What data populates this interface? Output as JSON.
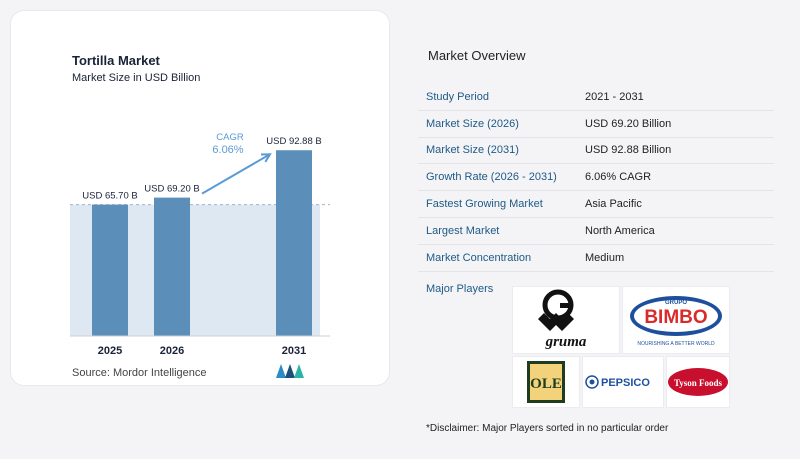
{
  "chart": {
    "title": "Tortilla Market",
    "subtitle": "Market Size in USD Billion",
    "source": "Source:  Mordor Intelligence"
  },
  "chart_data": {
    "type": "bar",
    "title": "Tortilla Market",
    "subtitle": "Market Size in USD Billion",
    "categories": [
      "2025",
      "2026",
      "2031"
    ],
    "values": [
      65.7,
      69.2,
      92.88
    ],
    "labels": [
      "USD 65.70 B",
      "USD 69.20 B",
      "USD 92.88 B"
    ],
    "cagr_label": "CAGR",
    "cagr_value": "6.06%",
    "ylim": [
      0,
      100
    ],
    "grid": false,
    "colors": {
      "bar": "#5b8fb9",
      "band": "#dde8f2",
      "arrow": "#5b9bd5",
      "baseline": "#cfcfd6",
      "text": "#1a2238"
    }
  },
  "overview": {
    "title": "Market Overview",
    "rows": [
      {
        "k": "Study Period",
        "v": "2021 - 2031"
      },
      {
        "k": "Market Size (2026)",
        "v": "USD 69.20 Billion"
      },
      {
        "k": "Market Size (2031)",
        "v": "USD 92.88 Billion"
      },
      {
        "k": "Growth Rate (2026 - 2031)",
        "v": "6.06% CAGR"
      },
      {
        "k": "Fastest Growing Market",
        "v": "Asia Pacific"
      },
      {
        "k": "Largest Market",
        "v": "North America"
      },
      {
        "k": "Market Concentration",
        "v": "Medium"
      }
    ]
  },
  "players": {
    "label": "Major Players",
    "logos": {
      "gruma": "gruma",
      "bimbo_top": "GRUPO",
      "bimbo": "BIMBO",
      "bimbo_tag": "NOURISHING A BETTER WORLD",
      "ole": "OLE",
      "pepsico": "PEPSICO",
      "tyson": "Tyson Foods"
    }
  },
  "disclaimer": "*Disclaimer: Major Players sorted in no particular order"
}
